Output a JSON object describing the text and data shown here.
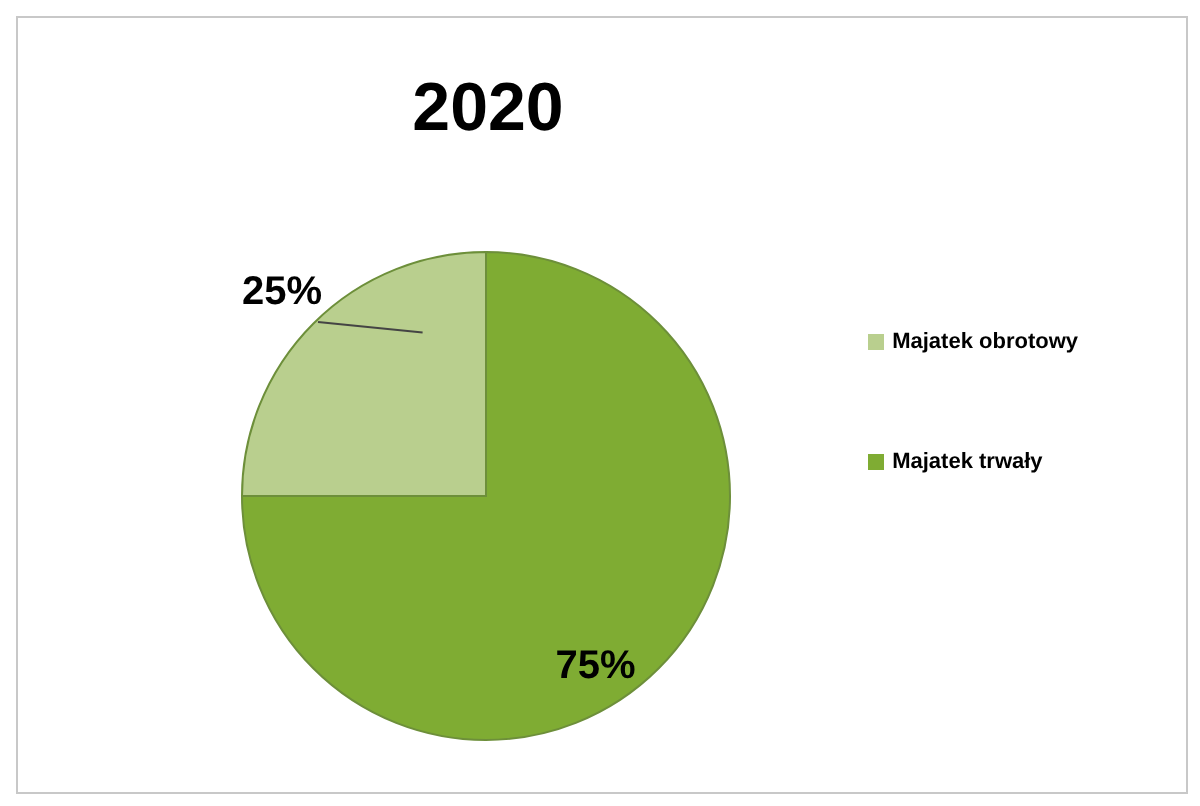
{
  "chart_data": {
    "type": "pie",
    "title": "2020",
    "categories": [
      "Majatek trwały",
      "Majatek obrotowy"
    ],
    "values": [
      75,
      25
    ],
    "colors": [
      "#7fac33",
      "#b9cf8e"
    ],
    "value_labels": [
      "75%",
      "25%"
    ],
    "legend": "right"
  }
}
